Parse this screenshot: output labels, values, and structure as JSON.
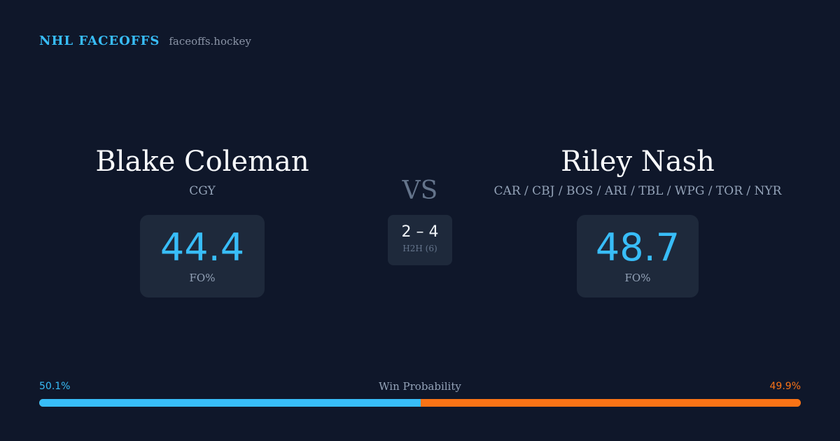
{
  "brand": {
    "name": "NHL FACEOFFS",
    "domain": "faceoffs.hockey"
  },
  "left_player": {
    "name": "Blake Coleman",
    "team": "CGY",
    "stat_value": "44.4",
    "stat_label": "FO%"
  },
  "right_player": {
    "name": "Riley Nash",
    "team": "CAR / CBJ / BOS / ARI / TBL / WPG / TOR / NYR",
    "stat_value": "48.7",
    "stat_label": "FO%"
  },
  "versus": {
    "label": "VS",
    "h2h_score": "2 – 4",
    "h2h_label": "H2H (6)"
  },
  "win_probability": {
    "title": "Win Probability",
    "left_text": "50.1%",
    "right_text": "49.9%",
    "left_fraction": 0.501,
    "right_fraction": 0.499
  },
  "colors": {
    "background": "#0f172a",
    "card": "#1e293b",
    "accent_blue": "#38bdf8",
    "accent_orange": "#f97316"
  }
}
